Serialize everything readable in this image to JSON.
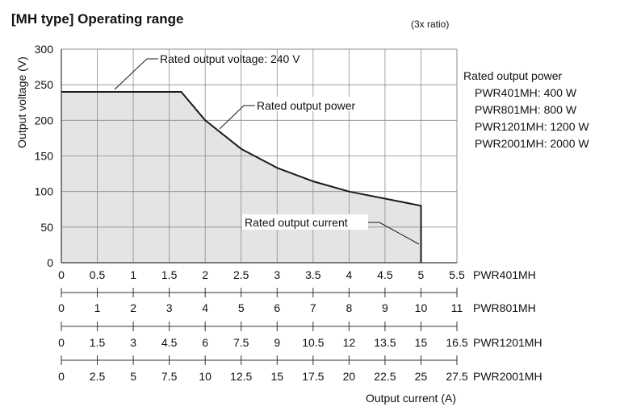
{
  "title": "[MH type] Operating range",
  "ratio_note": "(3x ratio)",
  "chart_data": {
    "type": "area",
    "title": "[MH type] Operating range",
    "subtitle": "(3x ratio)",
    "ylabel": "Output voltage (V)",
    "xlabel": "Output current (A)",
    "ylim": [
      0,
      300
    ],
    "y_ticks": [
      "0",
      "50",
      "100",
      "150",
      "200",
      "250",
      "300"
    ],
    "xlim": [
      0,
      5.5
    ],
    "grid": true,
    "boundary": {
      "x": [
        0,
        1.667,
        2.0,
        2.5,
        3.0,
        3.5,
        4.0,
        5.0,
        5.0
      ],
      "y": [
        240,
        240,
        200,
        160,
        133.3,
        114.3,
        100,
        80,
        0
      ]
    },
    "x_axes": [
      {
        "model": "PWR401MH",
        "ticks": [
          "0",
          "0.5",
          "1",
          "1.5",
          "2",
          "2.5",
          "3",
          "3.5",
          "4",
          "4.5",
          "5",
          "5.5"
        ]
      },
      {
        "model": "PWR801MH",
        "ticks": [
          "0",
          "1",
          "2",
          "3",
          "4",
          "5",
          "6",
          "7",
          "8",
          "9",
          "10",
          "11"
        ]
      },
      {
        "model": "PWR1201MH",
        "ticks": [
          "0",
          "1.5",
          "3",
          "4.5",
          "6",
          "7.5",
          "9",
          "10.5",
          "12",
          "13.5",
          "15",
          "16.5"
        ]
      },
      {
        "model": "PWR2001MH",
        "ticks": [
          "0",
          "2.5",
          "5",
          "7.5",
          "10",
          "12.5",
          "15",
          "17.5",
          "20",
          "22.5",
          "25",
          "27.5"
        ]
      }
    ],
    "annotations": {
      "rated_voltage": "Rated output voltage: 240 V",
      "rated_power": "Rated output power",
      "rated_current": "Rated output current"
    },
    "legend": {
      "title": "Rated output power",
      "items": [
        "PWR401MH: 400 W",
        "PWR801MH: 800 W",
        "PWR1201MH: 1200 W",
        "PWR2001MH: 2000 W"
      ]
    }
  },
  "colors": {
    "fill": "#e4e4e4",
    "line": "#1a1a1a",
    "grid": "#8c8c8c"
  }
}
